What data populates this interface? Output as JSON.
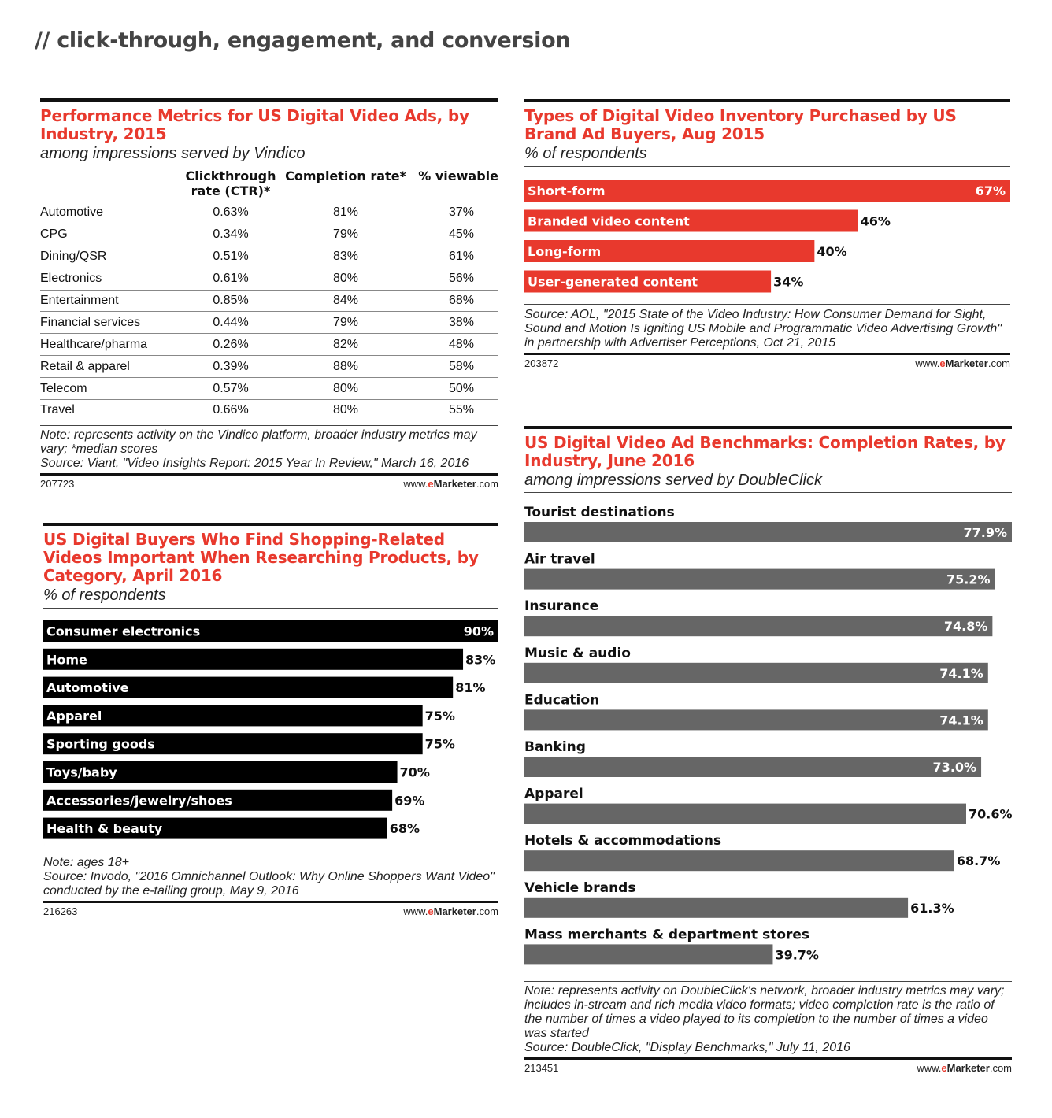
{
  "page": {
    "heading": "// click-through, engagement, and conversion"
  },
  "colors": {
    "accent": "#e8392d",
    "black_bar": "#000000",
    "gray_bar": "#666666"
  },
  "panel1": {
    "title": "Performance Metrics for US Digital Video Ads, by Industry, 2015",
    "subtitle": "among impressions served by Vindico",
    "columns": [
      "",
      "Clickthrough rate (CTR)*",
      "Completion rate*",
      "% viewable"
    ],
    "rows": [
      [
        "Automotive",
        "0.63%",
        "81%",
        "37%"
      ],
      [
        "CPG",
        "0.34%",
        "79%",
        "45%"
      ],
      [
        "Dining/QSR",
        "0.51%",
        "83%",
        "61%"
      ],
      [
        "Electronics",
        "0.61%",
        "80%",
        "56%"
      ],
      [
        "Entertainment",
        "0.85%",
        "84%",
        "68%"
      ],
      [
        "Financial services",
        "0.44%",
        "79%",
        "38%"
      ],
      [
        "Healthcare/pharma",
        "0.26%",
        "82%",
        "48%"
      ],
      [
        "Retail & apparel",
        "0.39%",
        "88%",
        "58%"
      ],
      [
        "Telecom",
        "0.57%",
        "80%",
        "50%"
      ],
      [
        "Travel",
        "0.66%",
        "80%",
        "55%"
      ]
    ],
    "note": "Note: represents activity on the Vindico platform, broader industry metrics may vary; *median scores",
    "source": "Source: Viant, \"Video Insights Report: 2015 Year In Review,\" March 16, 2016",
    "id": "207723",
    "brand": {
      "prefix": "www.",
      "e": "e",
      "m": "Marketer",
      "suffix": ".com"
    }
  },
  "panel2": {
    "title": "Types of Digital Video Inventory Purchased by US Brand Ad Buyers, Aug 2015",
    "subtitle": "% of respondents",
    "source": "Source: AOL, \"2015 State of the Video Industry: How Consumer Demand for Sight, Sound and Motion Is Igniting US Mobile and Programmatic Video Advertising Growth\" in partnership with Advertiser Perceptions, Oct 21, 2015",
    "id": "203872",
    "brand": {
      "prefix": "www.",
      "e": "e",
      "m": "Marketer",
      "suffix": ".com"
    }
  },
  "panel3": {
    "title": "US Digital Buyers Who Find Shopping-Related Videos Important When Researching Products, by Category, April 2016",
    "subtitle": "% of respondents",
    "note": "Note: ages 18+",
    "source": "Source: Invodo, \"2016 Omnichannel Outlook: Why Online Shoppers Want Video\" conducted by the e-tailing group, May 9, 2016",
    "id": "216263",
    "brand": {
      "prefix": "www.",
      "e": "e",
      "m": "Marketer",
      "suffix": ".com"
    }
  },
  "panel4": {
    "title": "US Digital Video Ad Benchmarks: Completion Rates, by Industry, June 2016",
    "subtitle": "among impressions served by DoubleClick",
    "note": "Note: represents activity on DoubleClick's network, broader industry metrics may vary; includes in-stream and rich media video formats; video completion rate is the ratio of the number of times a video played to its completion to the number of times a video was started",
    "source": "Source: DoubleClick, \"Display Benchmarks,\" July 11, 2016",
    "id": "213451",
    "brand": {
      "prefix": "www.",
      "e": "e",
      "m": "Marketer",
      "suffix": ".com"
    }
  },
  "chart_data": [
    {
      "type": "table",
      "title": "Performance Metrics for US Digital Video Ads, by Industry, 2015",
      "columns": [
        "Clickthrough rate (CTR)*",
        "Completion rate*",
        "% viewable"
      ],
      "categories": [
        "Automotive",
        "CPG",
        "Dining/QSR",
        "Electronics",
        "Entertainment",
        "Financial services",
        "Healthcare/pharma",
        "Retail & apparel",
        "Telecom",
        "Travel"
      ],
      "series": [
        {
          "name": "Clickthrough rate (CTR)*",
          "values": [
            0.63,
            0.34,
            0.51,
            0.61,
            0.85,
            0.44,
            0.26,
            0.39,
            0.57,
            0.66
          ]
        },
        {
          "name": "Completion rate*",
          "values": [
            81,
            79,
            83,
            80,
            84,
            79,
            82,
            88,
            80,
            80
          ]
        },
        {
          "name": "% viewable",
          "values": [
            37,
            45,
            61,
            56,
            68,
            38,
            48,
            58,
            50,
            55
          ]
        }
      ]
    },
    {
      "type": "bar",
      "orientation": "horizontal",
      "title": "Types of Digital Video Inventory Purchased by US Brand Ad Buyers, Aug 2015",
      "categories": [
        "Short-form",
        "Branded video content",
        "Long-form",
        "User-generated content"
      ],
      "values": [
        67,
        46,
        40,
        34
      ],
      "labels": [
        "67%",
        "46%",
        "40%",
        "34%"
      ],
      "xlim": [
        0,
        67
      ],
      "color": "#e8392d"
    },
    {
      "type": "bar",
      "orientation": "horizontal",
      "title": "US Digital Buyers Who Find Shopping-Related Videos Important When Researching Products, by Category, April 2016",
      "categories": [
        "Consumer electronics",
        "Home",
        "Automotive",
        "Apparel",
        "Sporting goods",
        "Toys/baby",
        "Accessories/jewelry/shoes",
        "Health & beauty"
      ],
      "values": [
        90,
        83,
        81,
        75,
        75,
        70,
        69,
        68
      ],
      "labels": [
        "90%",
        "83%",
        "81%",
        "75%",
        "75%",
        "70%",
        "69%",
        "68%"
      ],
      "xlim": [
        0,
        90
      ],
      "color": "#000000"
    },
    {
      "type": "bar",
      "orientation": "horizontal",
      "title": "US Digital Video Ad Benchmarks: Completion Rates, by Industry, June 2016",
      "categories": [
        "Tourist destinations",
        "Air travel",
        "Insurance",
        "Music & audio",
        "Education",
        "Banking",
        "Apparel",
        "Hotels & accommodations",
        "Vehicle brands",
        "Mass merchants & department stores"
      ],
      "values": [
        77.9,
        75.2,
        74.8,
        74.1,
        74.1,
        73.0,
        70.6,
        68.7,
        61.3,
        39.7
      ],
      "labels": [
        "77.9%",
        "75.2%",
        "74.8%",
        "74.1%",
        "74.1%",
        "73.0%",
        "70.6%",
        "68.7%",
        "61.3%",
        "39.7%"
      ],
      "xlim": [
        0,
        77.9
      ],
      "color": "#666666"
    }
  ]
}
